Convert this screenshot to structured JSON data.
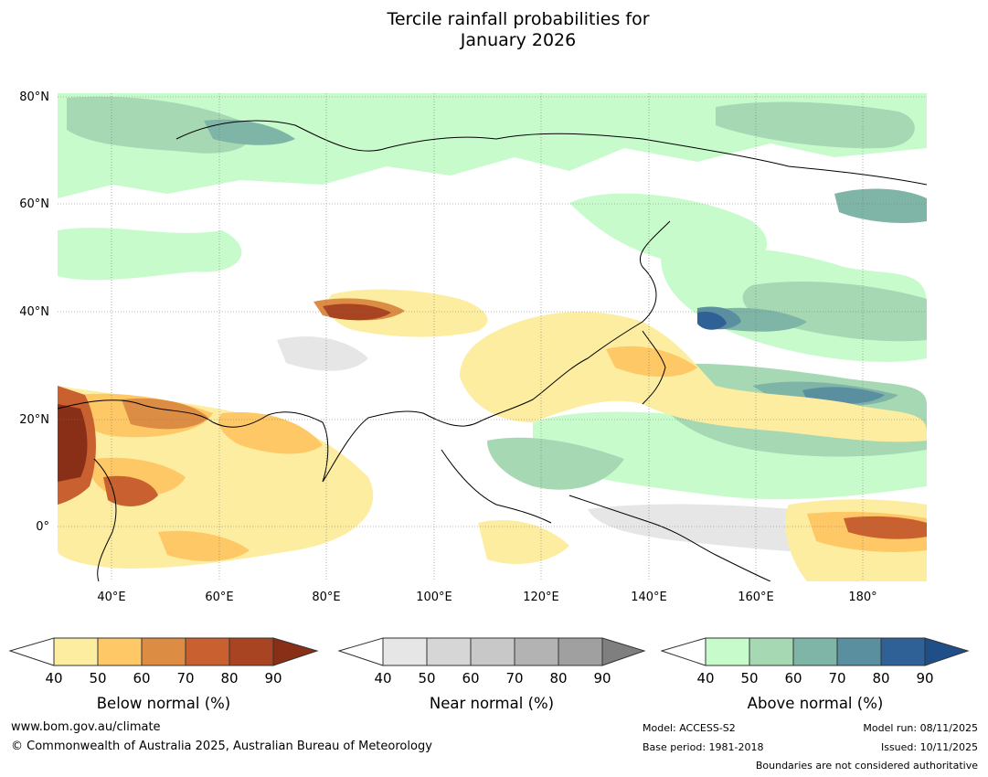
{
  "title_line1": "Tercile rainfall probabilities for",
  "title_line2": "January 2026",
  "map": {
    "lat_labels": [
      "80°N",
      "60°N",
      "40°N",
      "20°N",
      "0°"
    ],
    "lon_labels": [
      "40°E",
      "60°E",
      "80°E",
      "100°E",
      "120°E",
      "140°E",
      "160°E",
      "180°"
    ]
  },
  "colorbars": [
    {
      "label": "Below normal (%)",
      "ticks": [
        "40",
        "50",
        "60",
        "70",
        "80",
        "90"
      ],
      "colors": [
        "#fdeda0",
        "#fdc865",
        "#dd8c44",
        "#c8602f",
        "#a84422",
        "#8a2f17"
      ]
    },
    {
      "label": "Near normal (%)",
      "ticks": [
        "40",
        "50",
        "60",
        "70",
        "80",
        "90"
      ],
      "colors": [
        "#e6e6e6",
        "#d6d6d6",
        "#c8c8c8",
        "#b3b3b3",
        "#a0a0a0",
        "#7f7f7f"
      ]
    },
    {
      "label": "Above normal (%)",
      "ticks": [
        "40",
        "50",
        "60",
        "70",
        "80",
        "90"
      ],
      "colors": [
        "#c8fbcc",
        "#a7d8b4",
        "#7fb5a6",
        "#5a8fa0",
        "#2f6196",
        "#1f4e89"
      ]
    }
  ],
  "footer": {
    "website": "www.bom.gov.au/climate",
    "copyright": "© Commonwealth of Australia 2025, Australian Bureau of Meteorology",
    "model": "Model: ACCESS-S2",
    "base_period": "Base period: 1981-2018",
    "model_run": "Model run: 08/11/2025",
    "issued": "Issued: 10/11/2025",
    "disclaimer": "Boundaries are not considered authoritative"
  }
}
